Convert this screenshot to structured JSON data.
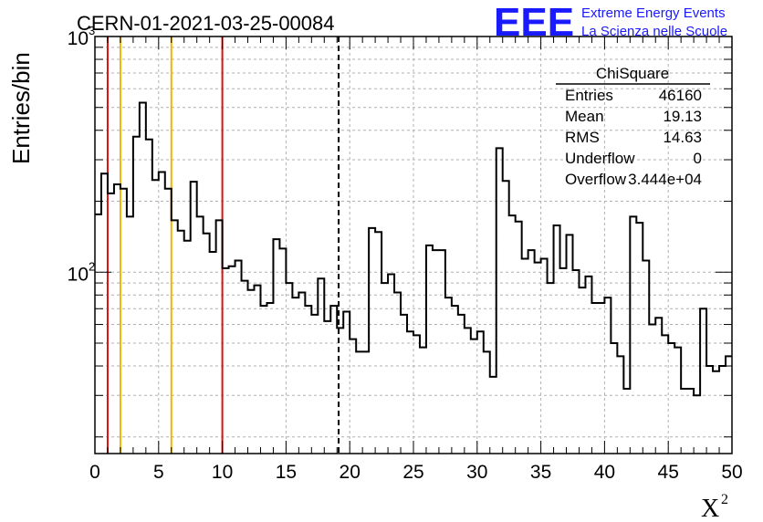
{
  "header": {
    "run_title": "CERN-01-2021-03-25-00084",
    "logo_mark": "EEE",
    "logo_line1": "Extreme Energy Events",
    "logo_line2": "La Scienza nelle Scuole"
  },
  "stats_box": {
    "title": "ChiSquare",
    "rows": [
      {
        "label": "Entries",
        "value": "46160"
      },
      {
        "label": "Mean",
        "value": "19.13"
      },
      {
        "label": "RMS",
        "value": "14.63"
      },
      {
        "label": "Underflow",
        "value": "0"
      },
      {
        "label": "Overflow",
        "value": "3.444e+04"
      }
    ]
  },
  "colors": {
    "histogram": "#000000",
    "red_lines": "#dd1111",
    "yellow_lines": "#f0b400",
    "dashed_line": "#000000",
    "grid": "#b0b0b0",
    "logo": "#1a1aff"
  },
  "chart_data": {
    "type": "step-histogram",
    "title": "CERN-01-2021-03-25-00084",
    "xlabel": "X²",
    "ylabel": "Entries/bin",
    "xlim": [
      0,
      50
    ],
    "ylim": [
      17,
      1000
    ],
    "y_scale": "log",
    "grid": true,
    "bin_width": 0.5,
    "x_ticks": [
      "0",
      "5",
      "10",
      "15",
      "20",
      "25",
      "30",
      "35",
      "40",
      "45",
      "50"
    ],
    "y_ticks": [
      {
        "value": 100,
        "base": "10",
        "exp": "2"
      },
      {
        "value": 1000,
        "base": "10",
        "exp": "3"
      }
    ],
    "bins": [
      0.0,
      0.5,
      1.0,
      1.5,
      2.0,
      2.5,
      3.0,
      3.5,
      4.0,
      4.5,
      5.0,
      5.5,
      6.0,
      6.5,
      7.0,
      7.5,
      8.0,
      8.5,
      9.0,
      9.5,
      10.0,
      10.5,
      11.0,
      11.5,
      12.0,
      12.5,
      13.0,
      13.5,
      14.0,
      14.5,
      15.0,
      15.5,
      16.0,
      16.5,
      17.0,
      17.5,
      18.0,
      18.5,
      19.0,
      19.5,
      20.0,
      20.5,
      21.0,
      21.5,
      22.0,
      22.5,
      23.0,
      23.5,
      24.0,
      24.5,
      25.0,
      25.5,
      26.0,
      26.5,
      27.0,
      27.5,
      28.0,
      28.5,
      29.0,
      29.5,
      30.0,
      30.5,
      31.0,
      31.5,
      32.0,
      32.5,
      33.0,
      33.5,
      34.0,
      34.5,
      35.0,
      35.5,
      36.0,
      36.5,
      37.0,
      37.5,
      38.0,
      38.5,
      39.0,
      39.5,
      40.0,
      40.5,
      41.0,
      41.5,
      42.0,
      42.5,
      43.0,
      43.5,
      44.0,
      44.5,
      45.0,
      45.5,
      46.0,
      46.5,
      47.0,
      47.5,
      48.0,
      48.5,
      49.0,
      49.5
    ],
    "values": [
      176,
      262,
      216,
      236,
      226,
      172,
      376,
      524,
      366,
      246,
      266,
      226,
      166,
      150,
      136,
      242,
      172,
      146,
      122,
      166,
      104,
      106,
      112,
      92,
      84,
      88,
      72,
      74,
      138,
      126,
      90,
      78,
      82,
      72,
      66,
      94,
      62,
      72,
      58,
      68,
      52,
      46,
      46,
      154,
      148,
      90,
      98,
      82,
      66,
      56,
      54,
      48,
      130,
      124,
      124,
      78,
      72,
      66,
      58,
      52,
      56,
      46,
      36,
      336,
      244,
      174,
      164,
      114,
      124,
      110,
      114,
      90,
      158,
      104,
      144,
      102,
      86,
      96,
      74,
      74,
      78,
      50,
      44,
      32,
      172,
      162,
      112,
      60,
      64,
      54,
      50,
      48,
      32,
      32,
      30,
      70,
      40,
      38,
      40,
      44
    ],
    "vertical_markers": [
      {
        "x": 1,
        "color": "red",
        "style": "solid"
      },
      {
        "x": 2,
        "color": "yellow",
        "style": "solid"
      },
      {
        "x": 6,
        "color": "yellow",
        "style": "solid"
      },
      {
        "x": 10,
        "color": "red",
        "style": "solid"
      },
      {
        "x": 19.13,
        "color": "black",
        "style": "dashed"
      }
    ]
  }
}
